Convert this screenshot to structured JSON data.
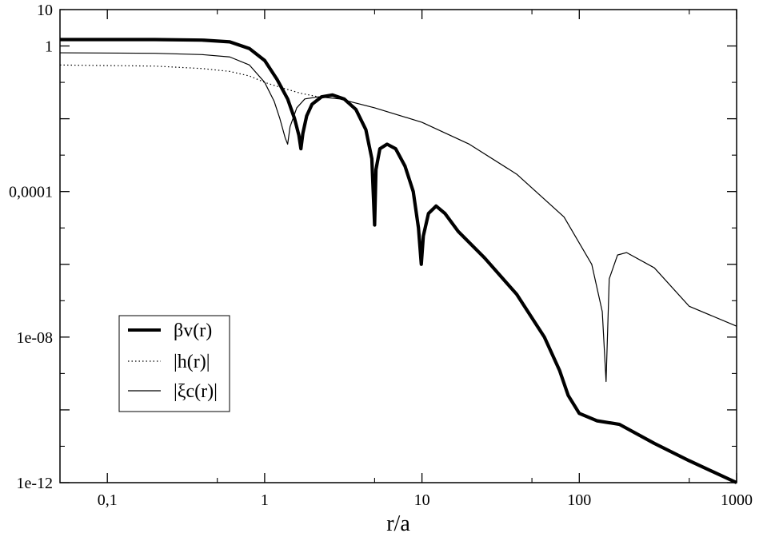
{
  "chart_data": {
    "type": "line",
    "title": "",
    "xlabel": "r/a",
    "ylabel": "",
    "xscale": "log",
    "yscale": "log",
    "xlim": [
      0.05,
      1000
    ],
    "ylim": [
      1e-12,
      10
    ],
    "grid": false,
    "legend_position": "lower-left",
    "x_ticks": [
      {
        "value": 0.1,
        "label": "0,1"
      },
      {
        "value": 1,
        "label": "1"
      },
      {
        "value": 10,
        "label": "10"
      },
      {
        "value": 100,
        "label": "100"
      },
      {
        "value": 1000,
        "label": "1000"
      }
    ],
    "y_ticks": [
      {
        "value": 1e-12,
        "label": "1e-12"
      },
      {
        "value": 1e-08,
        "label": "1e-08"
      },
      {
        "value": 0.0001,
        "label": "0,0001"
      },
      {
        "value": 1,
        "label": "1"
      },
      {
        "value": 10,
        "label": "10"
      }
    ],
    "series": [
      {
        "name": "βv(r)",
        "style": "thick-solid",
        "color": "#000000",
        "points": [
          [
            0.05,
            1.5
          ],
          [
            0.2,
            1.5
          ],
          [
            0.4,
            1.45
          ],
          [
            0.6,
            1.3
          ],
          [
            0.8,
            0.85
          ],
          [
            1.0,
            0.4
          ],
          [
            1.2,
            0.12
          ],
          [
            1.4,
            0.035
          ],
          [
            1.55,
            0.01
          ],
          [
            1.65,
            0.0035
          ],
          [
            1.7,
            0.0015
          ],
          [
            1.75,
            0.004
          ],
          [
            1.85,
            0.012
          ],
          [
            2.0,
            0.025
          ],
          [
            2.3,
            0.04
          ],
          [
            2.7,
            0.045
          ],
          [
            3.2,
            0.035
          ],
          [
            3.8,
            0.018
          ],
          [
            4.4,
            0.005
          ],
          [
            4.8,
            0.0008
          ],
          [
            5.0,
            1.2e-05
          ],
          [
            5.1,
            0.0004
          ],
          [
            5.4,
            0.0015
          ],
          [
            6.0,
            0.002
          ],
          [
            6.8,
            0.0015
          ],
          [
            7.8,
            0.0005
          ],
          [
            8.8,
            0.0001
          ],
          [
            9.5,
            1e-05
          ],
          [
            9.9,
            1e-06
          ],
          [
            10.2,
            6e-06
          ],
          [
            11.0,
            2.5e-05
          ],
          [
            12.3,
            4e-05
          ],
          [
            14.0,
            2.5e-05
          ],
          [
            17.0,
            8e-06
          ],
          [
            25.0,
            1.5e-06
          ],
          [
            40.0,
            1.5e-07
          ],
          [
            60.0,
            1e-08
          ],
          [
            75.0,
            1.2e-09
          ],
          [
            85.0,
            2.5e-10
          ],
          [
            100.0,
            8e-11
          ],
          [
            130.0,
            5e-11
          ],
          [
            180.0,
            4e-11
          ],
          [
            300.0,
            1.2e-11
          ],
          [
            500.0,
            4e-12
          ],
          [
            1000.0,
            1e-12
          ]
        ]
      },
      {
        "name": "|h(r)|",
        "style": "dotted",
        "color": "#000000",
        "points": [
          [
            0.05,
            0.3
          ],
          [
            0.2,
            0.28
          ],
          [
            0.4,
            0.24
          ],
          [
            0.6,
            0.2
          ],
          [
            0.8,
            0.15
          ],
          [
            1.0,
            0.1
          ],
          [
            1.3,
            0.07
          ],
          [
            1.7,
            0.05
          ],
          [
            2.2,
            0.04
          ]
        ]
      },
      {
        "name": "|ξc(r)|",
        "style": "thin-solid",
        "color": "#000000",
        "points": [
          [
            0.05,
            0.65
          ],
          [
            0.2,
            0.63
          ],
          [
            0.4,
            0.58
          ],
          [
            0.6,
            0.5
          ],
          [
            0.8,
            0.3
          ],
          [
            1.0,
            0.1
          ],
          [
            1.15,
            0.03
          ],
          [
            1.25,
            0.01
          ],
          [
            1.35,
            0.003
          ],
          [
            1.4,
            0.002
          ],
          [
            1.45,
            0.006
          ],
          [
            1.6,
            0.02
          ],
          [
            1.8,
            0.035
          ],
          [
            2.2,
            0.04
          ],
          [
            3.0,
            0.035
          ],
          [
            5.0,
            0.02
          ],
          [
            10.0,
            0.008
          ],
          [
            20.0,
            0.002
          ],
          [
            40.0,
            0.0003
          ],
          [
            80.0,
            2e-05
          ],
          [
            120.0,
            1e-06
          ],
          [
            140.0,
            5e-08
          ],
          [
            148.0,
            6e-10
          ],
          [
            155.0,
            4e-07
          ],
          [
            175.0,
            1.8e-06
          ],
          [
            200.0,
            2.1e-06
          ],
          [
            300.0,
            8e-07
          ],
          [
            500.0,
            7e-08
          ],
          [
            1000.0,
            2e-08
          ]
        ]
      }
    ]
  }
}
